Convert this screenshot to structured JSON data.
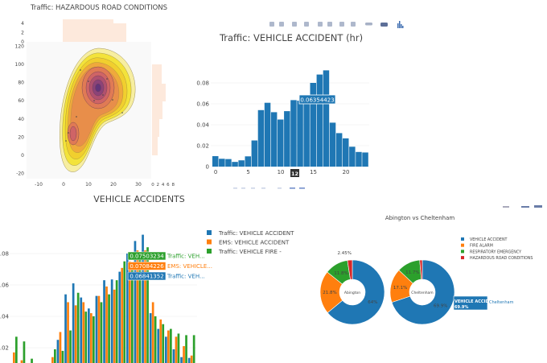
{
  "toolbar": {
    "icons": [
      "camera-icon",
      "save-icon",
      "zoom-icon",
      "pan-icon",
      "zoom-in-icon",
      "zoom-out-icon",
      "autoscale-icon",
      "home-icon",
      "spike-lines-icon",
      "compare-hover-icon",
      "plotly-logo-icon"
    ]
  },
  "colors": {
    "blue": "#1f77b4",
    "orange": "#ff7f0e",
    "green": "#2ca02c",
    "red": "#d62728"
  },
  "chart_data": [
    {
      "type": "contour",
      "title": "Traffic: HAZARDOUS ROAD CONDITIONS",
      "x_ticks": [
        "-10",
        "0",
        "10",
        "20",
        "30"
      ],
      "y_ticks": [
        "120",
        "100",
        "80",
        "60",
        "40",
        "20",
        "0",
        "-20"
      ],
      "top_hist_ticks": [
        "4",
        "2",
        "0"
      ],
      "right_hist_ticks": [
        "0",
        "2",
        "4",
        "6",
        "8"
      ],
      "peaks": [
        {
          "x": 14,
          "y": 74
        },
        {
          "x": 4,
          "y": 25
        }
      ]
    },
    {
      "type": "bar",
      "title": "Traffic: VEHICLE ACCIDENT (hr)",
      "categories": [
        0,
        1,
        2,
        3,
        4,
        5,
        6,
        7,
        8,
        9,
        10,
        11,
        12,
        13,
        14,
        15,
        16,
        17,
        18,
        19,
        20,
        21,
        22,
        23
      ],
      "values": [
        0.01,
        0.0075,
        0.0072,
        0.0045,
        0.006,
        0.0098,
        0.025,
        0.054,
        0.061,
        0.052,
        0.045,
        0.053,
        0.06354423,
        0.063,
        0.068,
        0.08,
        0.088,
        0.092,
        0.042,
        0.032,
        0.027,
        0.019,
        0.014,
        0.0135
      ],
      "x_ticks": [
        "0",
        "5",
        "10",
        "15",
        "20"
      ],
      "y_ticks": [
        "0",
        "0.02",
        "0.04",
        "0.06",
        "0.08"
      ],
      "ylim": [
        0,
        0.095
      ],
      "hover": {
        "value": "0.06354423",
        "x": "12"
      }
    },
    {
      "type": "bar",
      "title": "VEHICLE ACCIDENTS",
      "categories": [
        0,
        1,
        2,
        3,
        4,
        5,
        6,
        7,
        8,
        9,
        10,
        11,
        12,
        13,
        14,
        15,
        16,
        17,
        18,
        19,
        20,
        21,
        22,
        23
      ],
      "series": [
        {
          "name": "Traffic: VEHICLE ACCIDENT",
          "values": [
            0.01,
            0.0075,
            0.0072,
            0.0045,
            0.006,
            0.0098,
            0.025,
            0.054,
            0.061,
            0.052,
            0.045,
            0.053,
            0.063,
            0.0635,
            0.06841352,
            0.08,
            0.088,
            0.092,
            0.042,
            0.032,
            0.027,
            0.019,
            0.014,
            0.0135
          ]
        },
        {
          "name": "EMS: VEHICLE ACCIDENT",
          "values": [
            0.017,
            0.012,
            0.008,
            0.006,
            0.005,
            0.014,
            0.03,
            0.049,
            0.047,
            0.049,
            0.042,
            0.053,
            0.059,
            0.057,
            0.07084226,
            0.075,
            0.082,
            0.082,
            0.049,
            0.038,
            0.031,
            0.027,
            0.021,
            0.015
          ]
        },
        {
          "name": "Traffic: VEHICLE FIRE -",
          "values": [
            0.027,
            0.024,
            0.013,
            0.008,
            0.006,
            0.019,
            0.018,
            0.031,
            0.055,
            0.043,
            0.04,
            0.049,
            0.054,
            0.063,
            0.07503234,
            0.07,
            0.08,
            0.084,
            0.04,
            0.035,
            0.032,
            0.029,
            0.028,
            0.028
          ]
        }
      ],
      "y_ticks": [
        ".02",
        ".04",
        ".06",
        ".08"
      ],
      "hover": [
        {
          "value": "0.07503234",
          "label": "Traffic: VEH..."
        },
        {
          "value": "0.07084226",
          "label": "EMS: VEHICLE..."
        },
        {
          "value": "0.06841352",
          "label": "Traffic: VEH..."
        }
      ]
    },
    {
      "type": "pie",
      "title": "Abington vs Cheltenham",
      "labels": [
        "VEHICLE ACCIDENT",
        "FIRE ALARM",
        "RESPIRATORY EMERGENCY",
        "HAZARDOUS ROAD CONDITIONS"
      ],
      "pies": [
        {
          "name": "Abington",
          "values": [
            64.0,
            21.8,
            11.8,
            2.45
          ],
          "text": [
            "64%",
            "21.8%",
            "11.8%",
            "2.45%"
          ]
        },
        {
          "name": "Cheltenham",
          "values": [
            69.9,
            17.1,
            11.7,
            1.3
          ],
          "text": [
            "69.9%",
            "17.1%",
            "11.7%",
            ""
          ]
        }
      ],
      "hover": {
        "label": "VEHICLE ACCIDENT",
        "value": "69.9%",
        "trace": "Cheltenham"
      }
    }
  ]
}
